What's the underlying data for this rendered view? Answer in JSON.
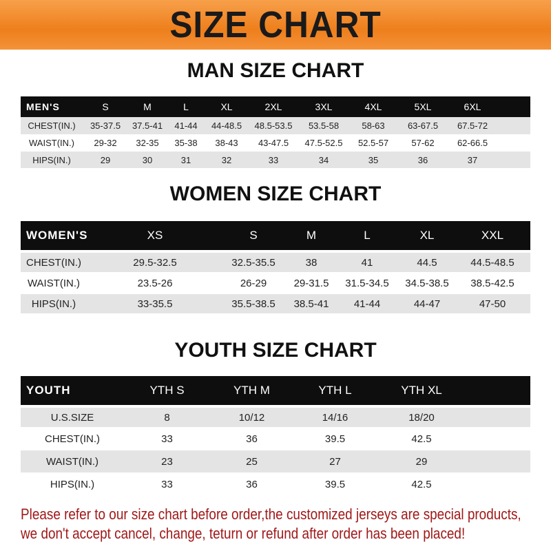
{
  "banner": "SIZE CHART",
  "men": {
    "title": "MAN SIZE CHART",
    "header": [
      "MEN'S",
      "S",
      "M",
      "L",
      "XL",
      "2XL",
      "3XL",
      "4XL",
      "5XL",
      "6XL"
    ],
    "rows": [
      [
        "CHEST(IN.)",
        "35-37.5",
        "37.5-41",
        "41-44",
        "44-48.5",
        "48.5-53.5",
        "53.5-58",
        "58-63",
        "63-67.5",
        "67.5-72"
      ],
      [
        "WAIST(IN.)",
        "29-32",
        "32-35",
        "35-38",
        "38-43",
        "43-47.5",
        "47.5-52.5",
        "52.5-57",
        "57-62",
        "62-66.5"
      ],
      [
        "HIPS(IN.)",
        "29",
        "30",
        "31",
        "32",
        "33",
        "34",
        "35",
        "36",
        "37"
      ]
    ]
  },
  "women": {
    "title": "WOMEN SIZE CHART",
    "header": [
      "WOMEN'S",
      "XS",
      "S",
      "M",
      "L",
      "XL",
      "XXL"
    ],
    "rows": [
      [
        "CHEST(IN.)",
        "29.5-32.5",
        "32.5-35.5",
        "38",
        "41",
        "44.5",
        "44.5-48.5"
      ],
      [
        "WAIST(IN.)",
        "23.5-26",
        "26-29",
        "29-31.5",
        "31.5-34.5",
        "34.5-38.5",
        "38.5-42.5"
      ],
      [
        "HIPS(IN.)",
        "33-35.5",
        "35.5-38.5",
        "38.5-41",
        "41-44",
        "44-47",
        "47-50"
      ]
    ]
  },
  "youth": {
    "title": "YOUTH SIZE CHART",
    "header": [
      "YOUTH",
      "YTH S",
      "YTH M",
      "YTH L",
      "YTH XL"
    ],
    "rows": [
      [
        "U.S.SIZE",
        "8",
        "10/12",
        "14/16",
        "18/20"
      ],
      [
        "CHEST(IN.)",
        "33",
        "36",
        "39.5",
        "42.5"
      ],
      [
        "WAIST(IN.)",
        "23",
        "25",
        "27",
        "29"
      ],
      [
        "HIPS(IN.)",
        "33",
        "36",
        "39.5",
        "42.5"
      ]
    ]
  },
  "footer": {
    "line1": "Please refer to our size chart before order,the customized jerseys are special products,",
    "line2": "we don't accept cancel, change, teturn or refund after order has been placed!"
  },
  "colors": {
    "banner": "#ee7f1c",
    "header_bg": "#0e0e0e",
    "alt_row": "#e4e4e4",
    "footer_text": "#a01818"
  }
}
